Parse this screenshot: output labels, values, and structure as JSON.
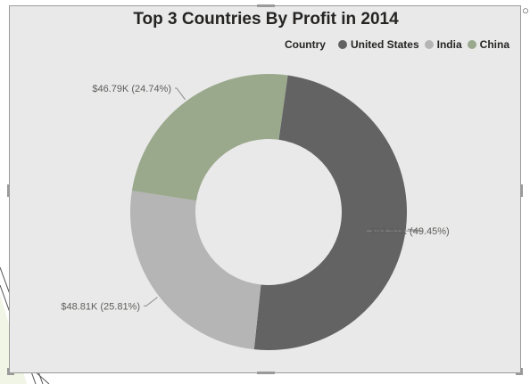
{
  "visual": {
    "title": "Top 3 Countries By Profit in 2014"
  },
  "legend": {
    "title": "Country",
    "position": "top-right"
  },
  "colors": {
    "united_states": "#636363",
    "india": "#b5b5b5",
    "china": "#9aa88c",
    "background": "#e9e9e9"
  },
  "chart_data": {
    "type": "pie",
    "variant": "donut",
    "title": "Top 3 Countries By Profit in 2014",
    "slices": [
      {
        "name": "United States",
        "value": 93.51,
        "percent": 49.45,
        "label": "$93.51K (49.45%)",
        "color": "#636363"
      },
      {
        "name": "India",
        "value": 48.81,
        "percent": 25.81,
        "label": "$48.81K (25.81%)",
        "color": "#b5b5b5"
      },
      {
        "name": "China",
        "value": 46.79,
        "percent": 24.74,
        "label": "$46.79K (24.74%)",
        "color": "#9aa88c"
      }
    ]
  }
}
